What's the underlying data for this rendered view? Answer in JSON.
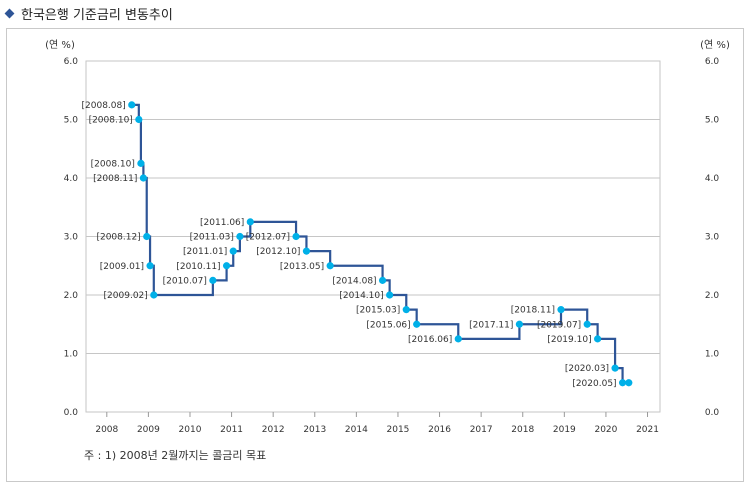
{
  "header": {
    "title": "한국은행 기준금리 변동추이"
  },
  "note": "주 : 1) 2008년 2월까지는 콜금리 목표",
  "chart_data": {
    "type": "line",
    "title": "한국은행 기준금리 변동추이",
    "ylabel_left": "(연 %)",
    "ylabel_right": "(연 %)",
    "xlabel": "",
    "ylim": [
      0,
      6
    ],
    "yticks": [
      "0.0",
      "1.0",
      "2.0",
      "3.0",
      "4.0",
      "5.0",
      "6.0"
    ],
    "xlim": [
      2007.5,
      2021.3
    ],
    "xticks": [
      "2008",
      "2009",
      "2010",
      "2011",
      "2012",
      "2013",
      "2014",
      "2015",
      "2016",
      "2017",
      "2018",
      "2019",
      "2020",
      "2021"
    ],
    "grid": true,
    "line_color": "#2e5597",
    "marker_color": "#00b0e8",
    "points": [
      {
        "label": "[2008.08]",
        "x": 2008.6,
        "y": 5.25
      },
      {
        "label": "[2008.10]",
        "x": 2008.77,
        "y": 5.0
      },
      {
        "label": "[2008.10]",
        "x": 2008.82,
        "y": 4.25
      },
      {
        "label": "[2008.11]",
        "x": 2008.88,
        "y": 4.0
      },
      {
        "label": "[2008.12]",
        "x": 2008.96,
        "y": 3.0
      },
      {
        "label": "[2009.01]",
        "x": 2009.04,
        "y": 2.5
      },
      {
        "label": "[2009.02]",
        "x": 2009.13,
        "y": 2.0
      },
      {
        "label": "[2010.07]",
        "x": 2010.55,
        "y": 2.25
      },
      {
        "label": "[2010.11]",
        "x": 2010.88,
        "y": 2.5
      },
      {
        "label": "[2011.01]",
        "x": 2011.04,
        "y": 2.75
      },
      {
        "label": "[2011.03]",
        "x": 2011.2,
        "y": 3.0
      },
      {
        "label": "[2011.06]",
        "x": 2011.45,
        "y": 3.25
      },
      {
        "label": "[2012.07]",
        "x": 2012.55,
        "y": 3.0
      },
      {
        "label": "[2012.10]",
        "x": 2012.8,
        "y": 2.75
      },
      {
        "label": "[2013.05]",
        "x": 2013.37,
        "y": 2.5
      },
      {
        "label": "[2014.08]",
        "x": 2014.63,
        "y": 2.25
      },
      {
        "label": "[2014.10]",
        "x": 2014.8,
        "y": 2.0
      },
      {
        "label": "[2015.03]",
        "x": 2015.2,
        "y": 1.75
      },
      {
        "label": "[2015.06]",
        "x": 2015.45,
        "y": 1.5
      },
      {
        "label": "[2016.06]",
        "x": 2016.45,
        "y": 1.25
      },
      {
        "label": "[2017.11]",
        "x": 2017.92,
        "y": 1.5
      },
      {
        "label": "[2018.11]",
        "x": 2018.92,
        "y": 1.75
      },
      {
        "label": "[2019.07]",
        "x": 2019.55,
        "y": 1.5
      },
      {
        "label": "[2019.10]",
        "x": 2019.8,
        "y": 1.25
      },
      {
        "label": "[2020.03]",
        "x": 2020.22,
        "y": 0.75
      },
      {
        "label": "[2020.05]",
        "x": 2020.4,
        "y": 0.5
      },
      {
        "label": "",
        "x": 2020.55,
        "y": 0.5
      }
    ]
  }
}
